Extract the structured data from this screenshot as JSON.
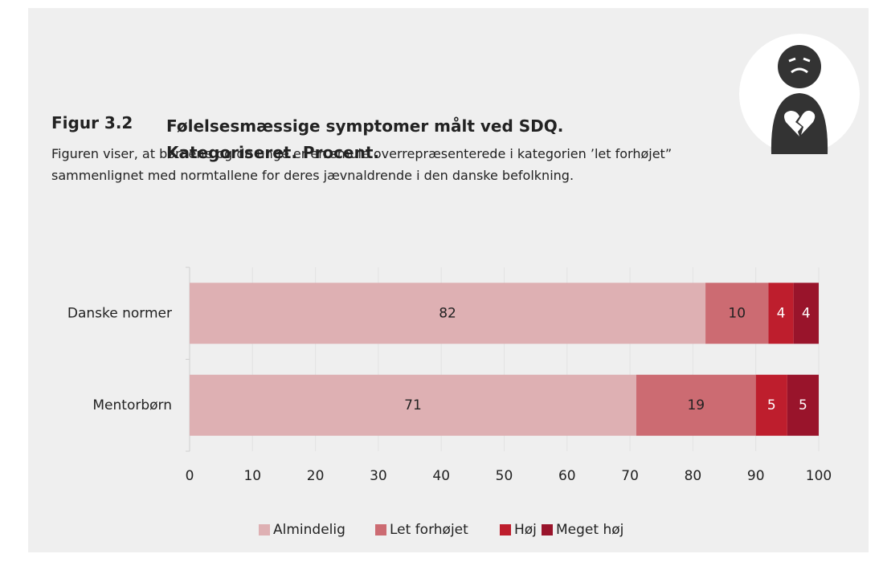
{
  "figure_label": "Figur 3.2",
  "description": "Figuren viser, at børnene og de unge er en smule overrepræsenterede i kategorien ’let forhøjet” sammenlignet med normtallene for deres jævnaldrende i den danske befolkning.",
  "chart_data": {
    "type": "stacked_bar_horizontal",
    "title": "Følelsesmæssige symptomer målt ved SDQ. Kategoriseret. Procent.",
    "categories": [
      "Danske normer",
      "Mentorbørn"
    ],
    "series": [
      {
        "name": "Almindelig",
        "color": "#deb0b3",
        "values": [
          82,
          71
        ]
      },
      {
        "name": "Let forhøjet",
        "color": "#cc6b72",
        "values": [
          10,
          19
        ]
      },
      {
        "name": "Høj",
        "color": "#be1e2d",
        "values": [
          4,
          5
        ]
      },
      {
        "name": "Meget høj",
        "color": "#99142b",
        "values": [
          4,
          5
        ]
      }
    ],
    "xlim": [
      0,
      100
    ],
    "xticks": [
      0,
      10,
      20,
      30,
      40,
      50,
      60,
      70,
      80,
      90,
      100
    ],
    "grid": true,
    "legend": "bottom"
  }
}
